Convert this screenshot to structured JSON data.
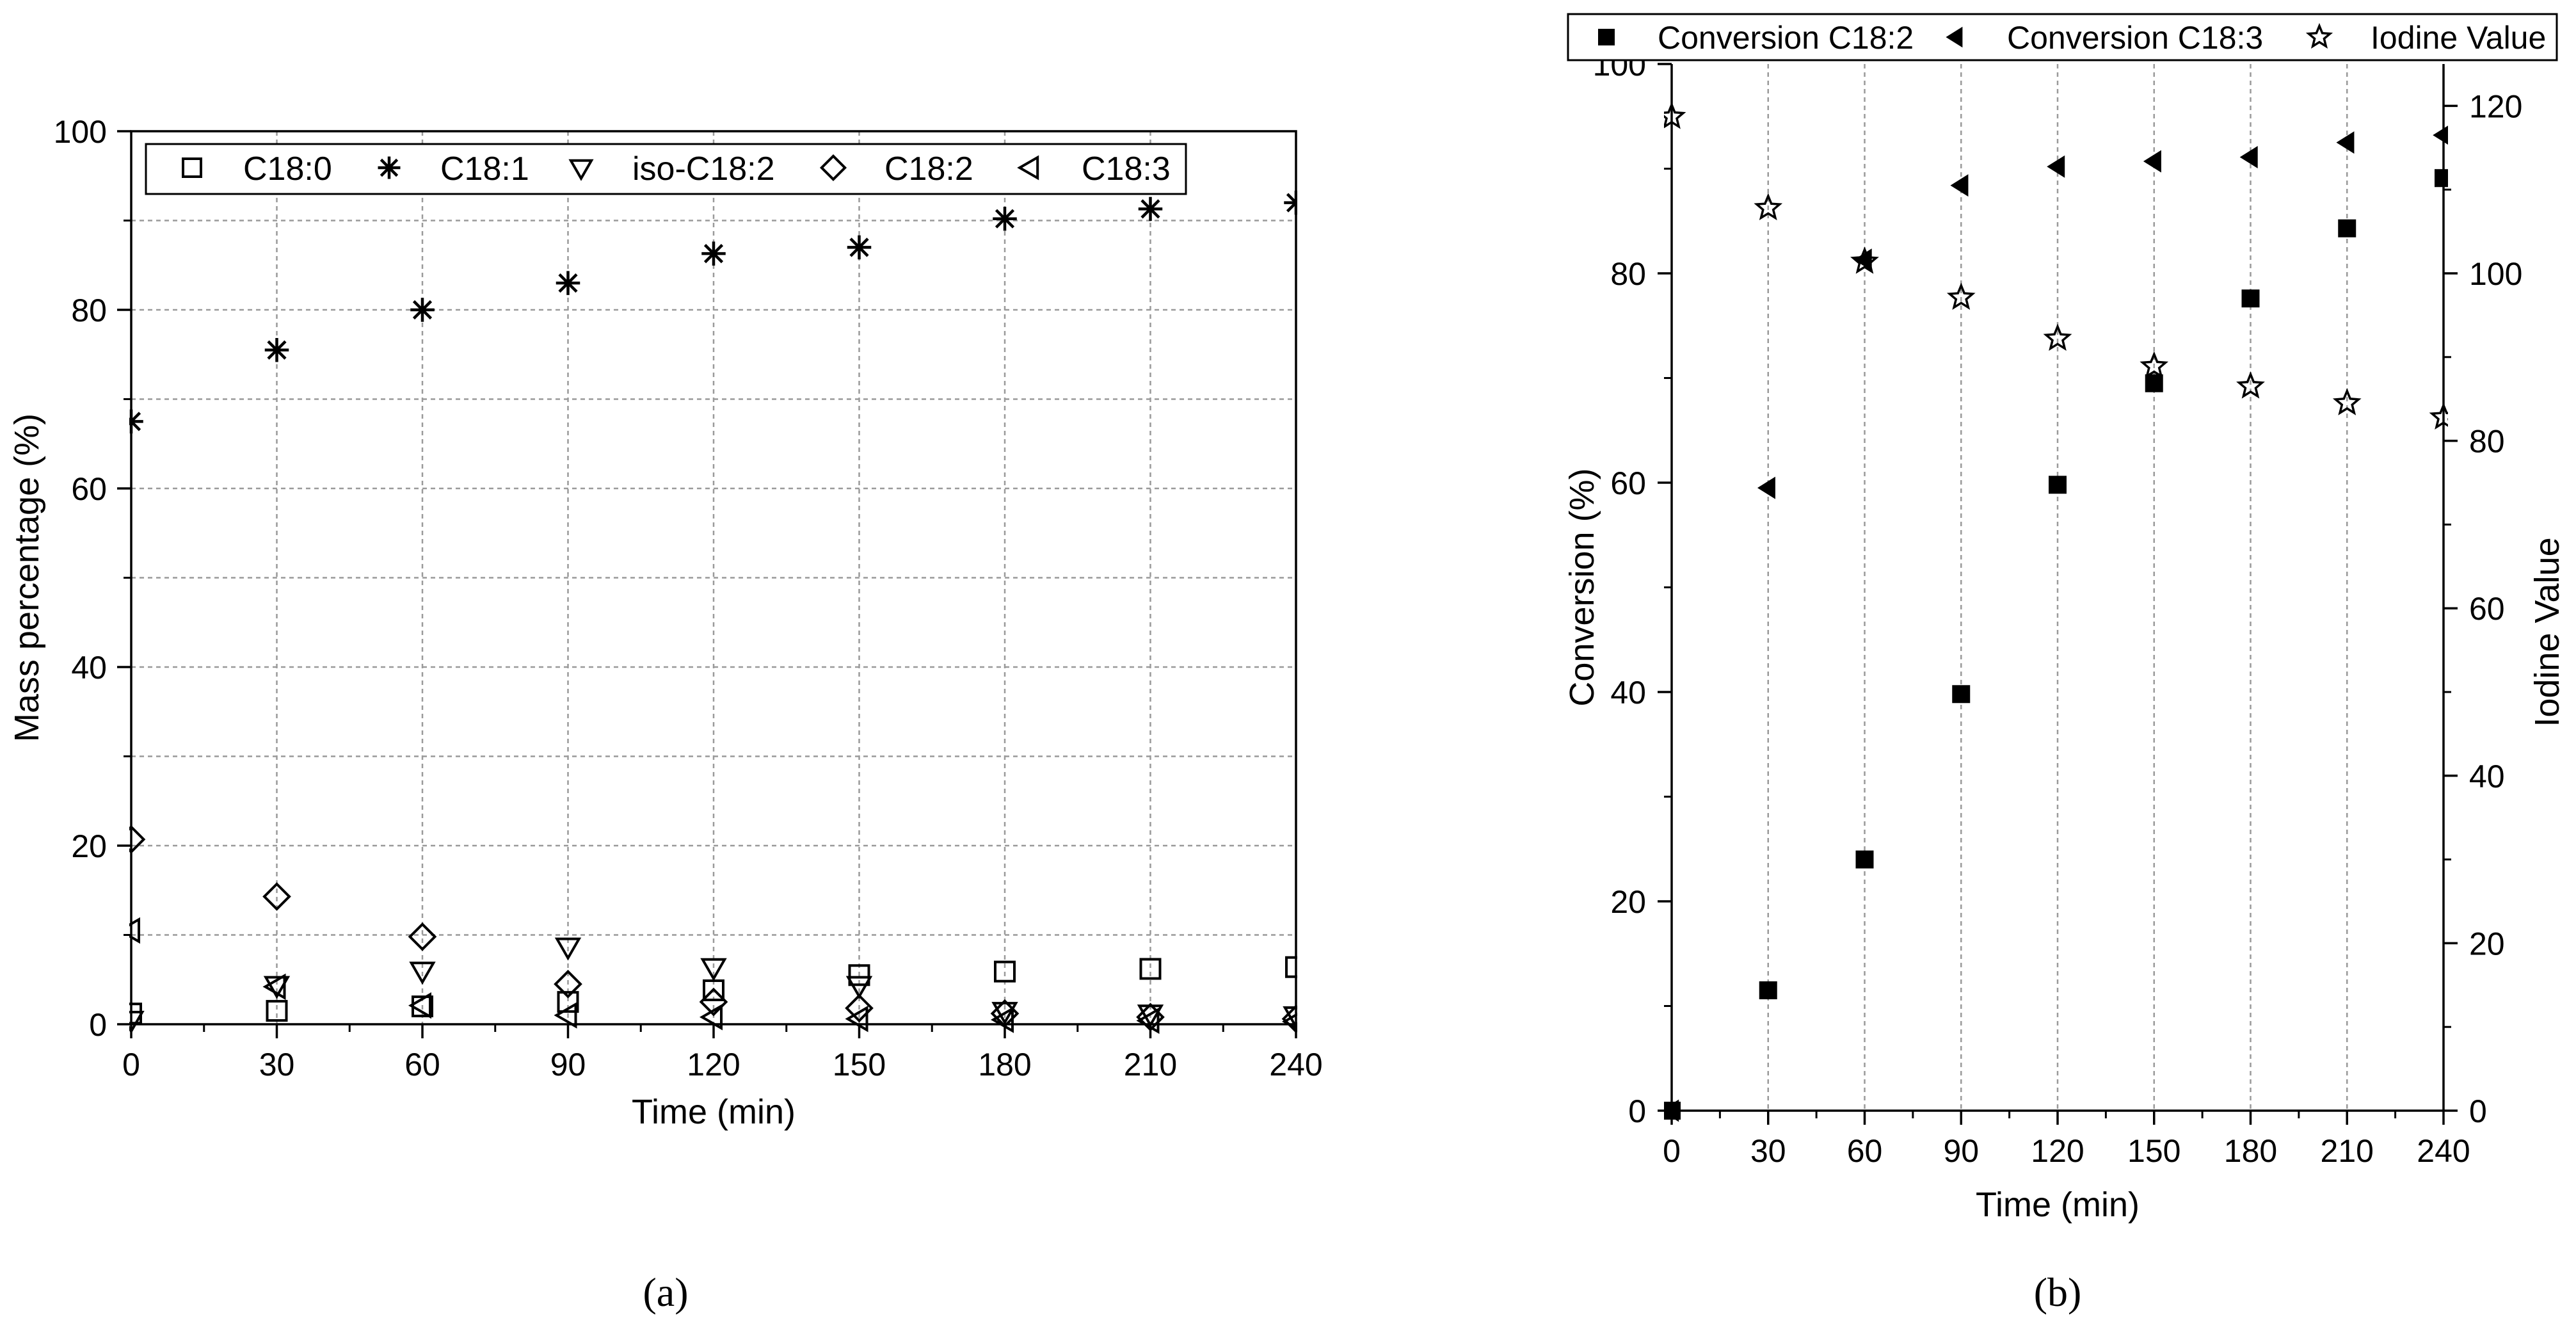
{
  "chart_data": [
    {
      "type": "scatter",
      "panel_label": "a",
      "xlabel": "Time (min)",
      "ylabel": "Mass percentage (%)",
      "xlim": [
        0,
        240
      ],
      "ylim": [
        0,
        100
      ],
      "x_ticks": [
        0,
        30,
        60,
        90,
        120,
        150,
        180,
        210,
        240
      ],
      "y_ticks": [
        0,
        20,
        40,
        60,
        80,
        100
      ],
      "grid": true,
      "legend_position": "top",
      "x": [
        0,
        30,
        60,
        90,
        120,
        150,
        180,
        210,
        240
      ],
      "series": [
        {
          "name": "C18:0",
          "marker": "square-open",
          "values": [
            1.2,
            1.5,
            2.0,
            2.5,
            3.8,
            5.5,
            5.9,
            6.2,
            6.4
          ]
        },
        {
          "name": "C18:1",
          "marker": "asterisk",
          "values": [
            67.5,
            75.5,
            80.0,
            83.0,
            86.3,
            87.0,
            90.2,
            91.3,
            92.0
          ]
        },
        {
          "name": "iso-C18:2",
          "marker": "triangle-down-open",
          "values": [
            0.5,
            4.4,
            6.0,
            8.7,
            6.4,
            4.4,
            1.5,
            1.2,
            1.0
          ]
        },
        {
          "name": "C18:2",
          "marker": "diamond-open",
          "values": [
            20.7,
            14.3,
            9.8,
            4.5,
            2.5,
            1.8,
            1.2,
            0.8,
            0.6
          ]
        },
        {
          "name": "C18:3",
          "marker": "triangle-left-open",
          "values": [
            10.5,
            4.2,
            2.1,
            1.0,
            0.8,
            0.6,
            0.5,
            0.4,
            0.3
          ]
        }
      ]
    },
    {
      "type": "scatter",
      "panel_label": "b",
      "xlabel": "Time (min)",
      "ylabel": "Conversion (%)",
      "y2label": "Iodine Value",
      "xlim": [
        0,
        240
      ],
      "ylim": [
        0,
        100
      ],
      "y2lim": [
        0,
        125
      ],
      "x_ticks": [
        0,
        30,
        60,
        90,
        120,
        150,
        180,
        210,
        240
      ],
      "y_ticks": [
        0,
        20,
        40,
        60,
        80,
        100
      ],
      "y2_ticks": [
        0,
        20,
        40,
        60,
        80,
        100,
        120
      ],
      "grid": "vertical",
      "legend_position": "top",
      "x": [
        0,
        30,
        60,
        90,
        120,
        150,
        180,
        210,
        240
      ],
      "series": [
        {
          "name": "Conversion C18:2",
          "marker": "square-filled",
          "axis": "left",
          "values": [
            0,
            11.5,
            24.0,
            39.8,
            59.8,
            69.5,
            77.6,
            84.3,
            89.1
          ]
        },
        {
          "name": "Conversion C18:3",
          "marker": "triangle-left-filled",
          "axis": "left",
          "values": [
            0,
            59.5,
            81.3,
            88.4,
            90.2,
            90.7,
            91.1,
            92.5,
            93.2
          ]
        },
        {
          "name": "Iodine Value",
          "marker": "star-open",
          "axis": "right",
          "values": [
            118.7,
            107.8,
            101.4,
            97.1,
            92.2,
            88.9,
            86.5,
            84.5,
            82.8
          ]
        }
      ]
    }
  ]
}
